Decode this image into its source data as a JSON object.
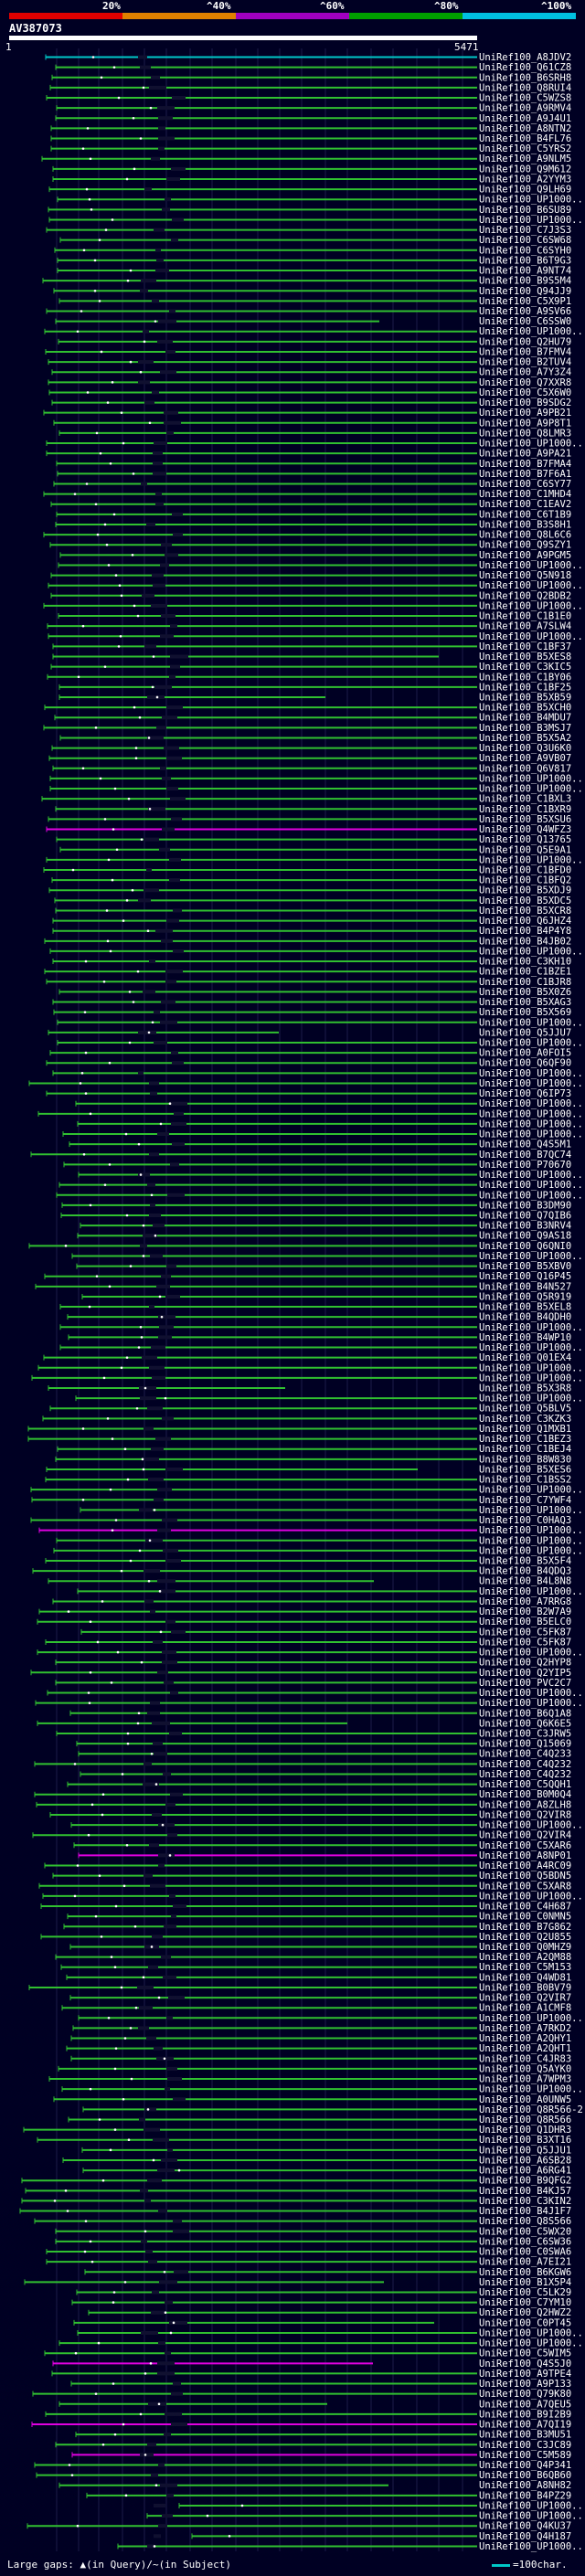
{
  "scale": {
    "labels": [
      "20%",
      "^40%",
      "^60%",
      "^80%",
      "^100%"
    ],
    "colors": [
      "#e00000",
      "#e08000",
      "#a000c0",
      "#00a000",
      "#00c0e0"
    ]
  },
  "query": {
    "id": "AV387073",
    "start": "1",
    "end": "5471"
  },
  "legend": {
    "large_gaps_text": "Large gaps: ▲(in Query)/~(in Subject)",
    "scale_text": "=100char."
  },
  "hits": [
    "UniRef100_A8JDV2",
    "UniRef100_Q61CZ8",
    "UniRef100_B6SRH8",
    "UniRef100_Q8RUI4",
    "UniRef100_C5WZS8",
    "UniRef100_A9RMV4",
    "UniRef100_A9J4U1",
    "UniRef100_A8NTN2",
    "UniRef100_B4FL76",
    "UniRef100_C5YRS2",
    "UniRef100_A9NLM5",
    "UniRef100_Q9M612",
    "UniRef100_A2YYM3",
    "UniRef100_Q9LH69",
    "UniRef100_UP1000..",
    "UniRef100_B6SU89",
    "UniRef100_UP1000..",
    "UniRef100_C7J3S3",
    "UniRef100_C6SW68",
    "UniRef100_C6SYH0",
    "UniRef100_B6T9G3",
    "UniRef100_A9NT74",
    "UniRef100_B9S5M4",
    "UniRef100_Q94JJ9",
    "UniRef100_C5X9P1",
    "UniRef100_A9SV66",
    "UniRef100_C6SSW0",
    "UniRef100_UP1000..",
    "UniRef100_Q2HU79",
    "UniRef100_B7FMV4",
    "UniRef100_B2TUV4",
    "UniRef100_A7Y3Z4",
    "UniRef100_Q7XXR8",
    "UniRef100_C5X6W0",
    "UniRef100_B9SDG2",
    "UniRef100_A9PB21",
    "UniRef100_A9P8T1",
    "UniRef100_Q8LMR3",
    "UniRef100_UP1000..",
    "UniRef100_A9PA21",
    "UniRef100_B7FMA4",
    "UniRef100_B7F6A1",
    "UniRef100_C6SY77",
    "UniRef100_C1MHD4",
    "UniRef100_C1EAV2",
    "UniRef100_C6T1B9",
    "UniRef100_B3S8H1",
    "UniRef100_Q8L6C6",
    "UniRef100_Q9SZY1",
    "UniRef100_A9PGM5",
    "UniRef100_UP1000..",
    "UniRef100_Q5N918",
    "UniRef100_UP1000..",
    "UniRef100_Q2BDB2",
    "UniRef100_UP1000..",
    "UniRef100_C1B1E0",
    "UniRef100_A7SLW4",
    "UniRef100_UP1000..",
    "UniRef100_C1BF37",
    "UniRef100_B5XES8",
    "UniRef100_C3KIC5",
    "UniRef100_C1BY06",
    "UniRef100_C1BF25",
    "UniRef100_B5XB59",
    "UniRef100_B5XCH0",
    "UniRef100_B4MDU7",
    "UniRef100_B3MSJ7",
    "UniRef100_B5X5A2",
    "UniRef100_Q3U6K0",
    "UniRef100_A9VB07",
    "UniRef100_Q6V817",
    "UniRef100_UP1000..",
    "UniRef100_UP1000..",
    "UniRef100_C1BXL3",
    "UniRef100_C1BXR9",
    "UniRef100_B5XSU6",
    "UniRef100_Q4WFZ3",
    "UniRef100_Q13765",
    "UniRef100_Q5E9A1",
    "UniRef100_UP1000..",
    "UniRef100_C1BFD0",
    "UniRef100_C1BFQ2",
    "UniRef100_B5XDJ9",
    "UniRef100_B5XDC5",
    "UniRef100_B5XCR8",
    "UniRef100_Q6JHZ4",
    "UniRef100_B4P4Y8",
    "UniRef100_B4JB02",
    "UniRef100_UP1000..",
    "UniRef100_C3KH10",
    "UniRef100_C1BZE1",
    "UniRef100_C1BJR8",
    "UniRef100_B5X0Z6",
    "UniRef100_B5XAG3",
    "UniRef100_B5X569",
    "UniRef100_UP1000..",
    "UniRef100_Q5JJU7",
    "UniRef100_UP1000..",
    "UniRef100_A0FOI5",
    "UniRef100_Q6QF90",
    "UniRef100_UP1000..",
    "UniRef100_UP1000..",
    "UniRef100_Q6IP73",
    "UniRef100_UP1000..",
    "UniRef100_UP1000..",
    "UniRef100_UP1000..",
    "UniRef100_UP1000..",
    "UniRef100_Q4S5M1",
    "UniRef100_B7QC74",
    "UniRef100_P70670",
    "UniRef100_UP1000..",
    "UniRef100_UP1000..",
    "UniRef100_UP1000..",
    "UniRef100_B3DM90",
    "UniRef100_Q7QIB6",
    "UniRef100_B3NRV4",
    "UniRef100_Q9AS18",
    "UniRef100_Q6QNI0",
    "UniRef100_UP1000..",
    "UniRef100_B5XBV0",
    "UniRef100_Q16P45",
    "UniRef100_B4N527",
    "UniRef100_Q5R919",
    "UniRef100_B5XEL8",
    "UniRef100_B4QDH0",
    "UniRef100_UP1000..",
    "UniRef100_B4WP10",
    "UniRef100_UP1000..",
    "UniRef100_Q01EX4",
    "UniRef100_UP1000..",
    "UniRef100_UP1000..",
    "UniRef100_B5X3R8",
    "UniRef100_UP1000..",
    "UniRef100_Q5BLV5",
    "UniRef100_C3KZK3",
    "UniRef100_Q1MXB1",
    "UniRef100_C1BEZ3",
    "UniRef100_C1BEJ4",
    "UniRef100_B8W830",
    "UniRef100_B5XES6",
    "UniRef100_C1BSS2",
    "UniRef100_UP1000..",
    "UniRef100_C7YWF4",
    "UniRef100_UP1000..",
    "UniRef100_C0HAQ3",
    "UniRef100_UP1000..",
    "UniRef100_UP1000..",
    "UniRef100_UP1000..",
    "UniRef100_B5X5F4",
    "UniRef100_B4QDQ3",
    "UniRef100_B4L8N8",
    "UniRef100_UP1000..",
    "UniRef100_A7RRG8",
    "UniRef100_B2W7A9",
    "UniRef100_B5ELC0",
    "UniRef100_C5FK87",
    "UniRef100_C5FK87",
    "UniRef100_UP1000..",
    "UniRef100_Q2HYP8",
    "UniRef100_Q2YIP5",
    "UniRef100_PVC2C7",
    "UniRef100_UP1000..",
    "UniRef100_UP1000..",
    "UniRef100_B6Q1A8",
    "UniRef100_Q6K6E5",
    "UniRef100_C3JRW5",
    "UniRef100_Q15069",
    "UniRef100_C4Q233",
    "UniRef100_C4Q232",
    "UniRef100_C4Q232",
    "UniRef100_C5QQH1",
    "UniRef100_B0M0Q4",
    "UniRef100_A8ZLH8",
    "UniRef100_Q2VIR8",
    "UniRef100_UP1000..",
    "UniRef100_Q2VIR4",
    "UniRef100_C5XAR6",
    "UniRef100_A8NP01",
    "UniRef100_A4RC09",
    "UniRef100_Q5BDN5",
    "UniRef100_C5XAR8",
    "UniRef100_UP1000..",
    "UniRef100_C4H687",
    "UniRef100_C0NMN5",
    "UniRef100_B7G862",
    "UniRef100_Q2U855",
    "UniRef100_Q0MHZ9",
    "UniRef100_A2QM88",
    "UniRef100_C5M153",
    "UniRef100_Q4WD81",
    "UniRef100_B0BV79",
    "UniRef100_Q2VIR7",
    "UniRef100_A1CMF8",
    "UniRef100_UP1000..",
    "UniRef100_A7RKD2",
    "UniRef100_A2QHY1",
    "UniRef100_A2QHT1",
    "UniRef100_C4JR83",
    "UniRef100_Q5AYK0",
    "UniRef100_A7WPM3",
    "UniRef100_UP1000..",
    "UniRef100_A0UNW5",
    "UniRef100_Q8R566-2",
    "UniRef100_Q8R566",
    "UniRef100_Q1DHR3",
    "UniRef100_B3XT16",
    "UniRef100_Q5JJU1",
    "UniRef100_A6SB28",
    "UniRef100_A6RG41",
    "UniRef100_B9QFG2",
    "UniRef100_B4KJ57",
    "UniRef100_C3KIN2",
    "UniRef100_B4J1F7",
    "UniRef100_Q8S566",
    "UniRef100_C5WX20",
    "UniRef100_C6SW36",
    "UniRef100_C0SWA6",
    "UniRef100_A7EI21",
    "UniRef100_B6KGW6",
    "UniRef100_B1X5P4",
    "UniRef100_C5LK29",
    "UniRef100_C7YM10",
    "UniRef100_Q2HWZ2",
    "UniRef100_C0PT45",
    "UniRef100_UP1000..",
    "UniRef100_UP1000..",
    "UniRef100_C5WIM5",
    "UniRef100_Q4S5J0",
    "UniRef100_A9TPE4",
    "UniRef100_A9P133",
    "UniRef100_Q79K80",
    "UniRef100_A7QEU5",
    "UniRef100_B9I2B9",
    "UniRef100_A7QI19",
    "UniRef100_B3MU51",
    "UniRef100_C3JC89",
    "UniRef100_C5M589",
    "UniRef100_Q4P341",
    "UniRef100_B6QB60",
    "UniRef100_A8NH82",
    "UniRef100_B4PZ29",
    "UniRef100_UP1000..",
    "UniRef100_UP1000..",
    "UniRef100_Q4KU37",
    "UniRef100_Q4H187",
    "UniRef100_UP1000.."
  ]
}
